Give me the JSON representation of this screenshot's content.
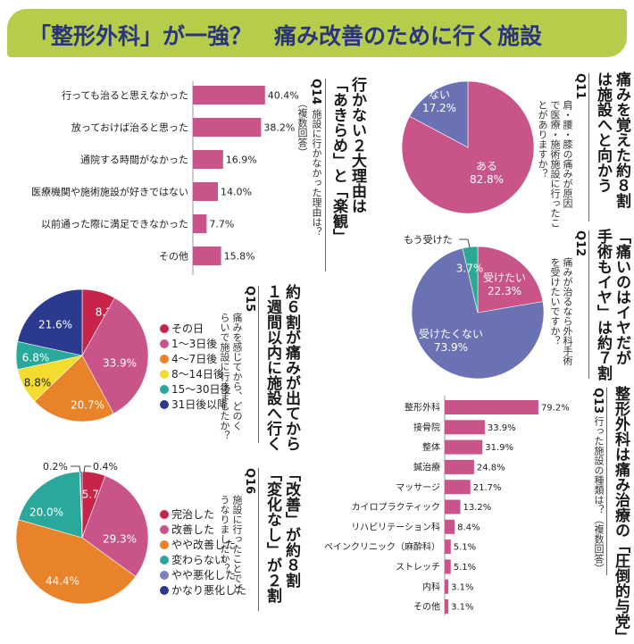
{
  "banner": {
    "title": "「整形外科」が一強？　痛み改善のために行く施設"
  },
  "sections": {
    "q14": {
      "headline": "行かない２大理由は\n「あきらめ」と「楽観」",
      "qlabel": "Q",
      "qnum": "14",
      "question": "施設に行かなかった理由は？",
      "note": "（複数回答）"
    },
    "q11": {
      "headline": "痛みを覚えた約８割\nは施設へと向かう",
      "qlabel": "Q",
      "qnum": "11",
      "question": "肩・腰・膝の痛みが原因\nで医療・施術施設に行ったこ\nとがありますか？"
    },
    "q12": {
      "headline": "「痛いのはイヤだが\n手術もイヤ」は約７割",
      "qlabel": "Q",
      "qnum": "12",
      "question": "痛みが治るなら外科手術\nを受けたいですか？"
    },
    "q15": {
      "headline": "約６割が痛みが出てから\n１週間以内に施設へ行く",
      "qlabel": "Q",
      "qnum": "15",
      "question": "痛みを感じてから、どのく\nらいで施設に行きましたか？"
    },
    "q16": {
      "headline": "「改善」が約８割\n「変化なし」が２割",
      "qlabel": "Q",
      "qnum": "16",
      "question": "施設に行ったことでど\nうなりましたか？"
    },
    "q13": {
      "headline": "整形外科は痛み治療の「圧倒的与党」",
      "qlabel": "Q",
      "qnum": "13",
      "question": "行った施設の種類は？（複数回答）"
    }
  },
  "chart_data": [
    {
      "id": "q14",
      "type": "bar",
      "orientation": "horizontal",
      "title": "施設に行かなかった理由は？（複数回答）",
      "categories": [
        "行っても治ると思えなかった",
        "放っておけば治ると思った",
        "通院する時間がなかった",
        "医療機関や施術施設が好きではない",
        "以前通った際に満足できなかった",
        "その他"
      ],
      "values": [
        40.4,
        38.2,
        16.9,
        14.0,
        7.7,
        15.8
      ],
      "labels": [
        "40.4%",
        "38.2%",
        "16.9%",
        "14.0%",
        "7.7%",
        "15.8%"
      ],
      "unit": "%",
      "xlim": [
        0,
        42
      ],
      "color": "#c85489"
    },
    {
      "id": "q11",
      "type": "pie",
      "title": "肩・腰・膝の痛みが原因で医療・施術施設に行ったことがありますか？",
      "slices": [
        {
          "label": "ある",
          "value": 82.8,
          "text": "82.8%",
          "color": "#c85489"
        },
        {
          "label": "ない",
          "value": 17.2,
          "text": "17.2%",
          "color": "#6b72b3"
        }
      ]
    },
    {
      "id": "q12",
      "type": "pie",
      "title": "痛みが治るなら外科手術を受けたいですか？",
      "slices": [
        {
          "label": "受けたい",
          "value": 22.3,
          "text": "22.3%",
          "color": "#c85489"
        },
        {
          "label": "受けたくない",
          "value": 73.9,
          "text": "73.9%",
          "color": "#6b72b3"
        },
        {
          "label": "もう受けた",
          "value": 3.7,
          "text": "3.7%",
          "color": "#2aa893"
        }
      ]
    },
    {
      "id": "q15",
      "type": "pie",
      "title": "痛みを感じてから、どのくらいで施設に行きましたか？",
      "legend_position": "right",
      "slices": [
        {
          "label": "その日",
          "value": 8.2,
          "text": "8.2%",
          "color": "#c8244a"
        },
        {
          "label": "1～3日後",
          "value": 33.9,
          "text": "33.9%",
          "color": "#c85489"
        },
        {
          "label": "4～7日後",
          "value": 20.7,
          "text": "20.7%",
          "color": "#e8832a"
        },
        {
          "label": "8～14日後",
          "value": 8.8,
          "text": "8.8%",
          "color": "#f2dc2e"
        },
        {
          "label": "15～30日後",
          "value": 6.8,
          "text": "6.8%",
          "color": "#2aa89c"
        },
        {
          "label": "31日後以降",
          "value": 21.6,
          "text": "21.6%",
          "color": "#2b3a8e"
        }
      ]
    },
    {
      "id": "q16",
      "type": "pie",
      "title": "施設に行ったことでどうなりましたか？",
      "legend_position": "right",
      "slices": [
        {
          "label": "完治した",
          "value": 5.7,
          "text": "5.7%",
          "color": "#c8244a"
        },
        {
          "label": "改善した",
          "value": 29.3,
          "text": "29.3%",
          "color": "#c85489"
        },
        {
          "label": "やや改善した",
          "value": 44.4,
          "text": "44.4%",
          "color": "#e8832a"
        },
        {
          "label": "変わらない",
          "value": 20.0,
          "text": "20.0%",
          "color": "#2aa89c"
        },
        {
          "label": "やや悪化した",
          "value": 0.2,
          "text": "0.2%",
          "color": "#7a7fc0"
        },
        {
          "label": "かなり悪化した",
          "value": 0.4,
          "text": "0.4%",
          "color": "#2b3a8e"
        }
      ]
    },
    {
      "id": "q13",
      "type": "bar",
      "orientation": "horizontal",
      "title": "行った施設の種類は？（複数回答）",
      "categories": [
        "整形外科",
        "接骨院",
        "整体",
        "鍼治療",
        "マッサージ",
        "カイロプラクティック",
        "リハビリテーション科",
        "ペインクリニック（麻酔科）",
        "ストレッチ",
        "内科",
        "その他"
      ],
      "values": [
        79.2,
        33.9,
        31.9,
        24.8,
        21.7,
        13.2,
        8.4,
        5.1,
        5.1,
        3.1,
        3.1
      ],
      "labels": [
        "79.2%",
        "33.9%",
        "31.9%",
        "24.8%",
        "21.7%",
        "13.2%",
        "8.4%",
        "5.1%",
        "5.1%",
        "3.1%",
        "3.1%"
      ],
      "unit": "%",
      "xlim": [
        0,
        80
      ],
      "color": "#c85489"
    }
  ]
}
